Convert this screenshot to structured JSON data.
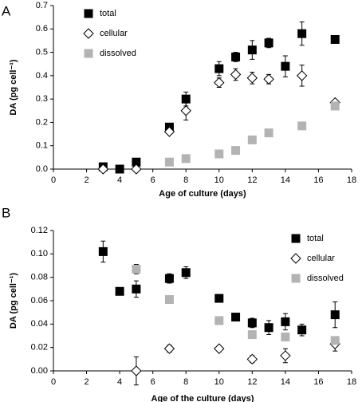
{
  "chart_data": [
    {
      "type": "scatter",
      "panel_label": "A",
      "xlabel": "Age of culture (days)",
      "ylabel": "DA (pg cell⁻¹)",
      "xlim": [
        0,
        18
      ],
      "xticks": [
        0,
        2,
        4,
        6,
        8,
        10,
        12,
        14,
        16,
        18
      ],
      "ylim": [
        0,
        0.7
      ],
      "yticks": [
        {
          "value": 0,
          "label": "0.0"
        },
        0.1,
        0.2,
        0.3,
        0.4,
        0.5,
        0.6,
        0.7
      ],
      "legend": "upper left",
      "grid": false,
      "series": [
        {
          "name": "total",
          "marker": "square",
          "color": "#000000",
          "x": [
            3,
            4,
            5,
            7,
            8,
            10,
            11,
            12,
            13,
            14,
            15,
            17
          ],
          "values": [
            0.01,
            0.0,
            0.03,
            0.18,
            0.3,
            0.43,
            0.48,
            0.51,
            0.54,
            0.44,
            0.58,
            0.555
          ],
          "errors": [
            null,
            null,
            null,
            0.01,
            0.03,
            0.03,
            0.02,
            0.04,
            0.02,
            0.045,
            0.05,
            null
          ]
        },
        {
          "name": "cellular",
          "marker": "diamond",
          "color": "#000000",
          "x": [
            3,
            5,
            7,
            8,
            10,
            11,
            12,
            13,
            15,
            17
          ],
          "values": [
            0.0,
            0.0,
            0.16,
            0.25,
            0.37,
            0.405,
            0.39,
            0.385,
            0.4,
            0.285
          ],
          "errors": [
            null,
            null,
            0.01,
            0.04,
            0.02,
            0.025,
            0.025,
            0.02,
            0.045,
            null
          ]
        },
        {
          "name": "dissolved",
          "marker": "square",
          "color": "#b3b3b3",
          "x": [
            7,
            8,
            10,
            11,
            12,
            13,
            15,
            17
          ],
          "values": [
            0.03,
            0.045,
            0.065,
            0.08,
            0.125,
            0.155,
            0.185,
            0.27
          ],
          "errors": [
            null,
            null,
            null,
            null,
            null,
            null,
            null,
            null
          ]
        }
      ]
    },
    {
      "type": "scatter",
      "panel_label": "B",
      "xlabel": "Age of the culture (days)",
      "ylabel": "DA (pg cell⁻¹)",
      "xlim": [
        0,
        18
      ],
      "xticks": [
        0,
        2,
        4,
        6,
        8,
        10,
        12,
        14,
        16,
        18
      ],
      "ylim": [
        0,
        0.12
      ],
      "yticks": [
        {
          "value": 0,
          "label": "0.00"
        },
        {
          "value": 0.02,
          "label": "0.02"
        },
        {
          "value": 0.04,
          "label": "0.04"
        },
        {
          "value": 0.06,
          "label": "0.06"
        },
        {
          "value": 0.08,
          "label": "0.08"
        },
        {
          "value": 0.1,
          "label": "0.10"
        },
        {
          "value": 0.12,
          "label": "0.12"
        }
      ],
      "legend": "upper right",
      "grid": false,
      "series": [
        {
          "name": "total",
          "marker": "square",
          "color": "#000000",
          "x": [
            3,
            4,
            5,
            7,
            8,
            10,
            11,
            12,
            13,
            14,
            15,
            17
          ],
          "values": [
            0.102,
            0.068,
            0.07,
            0.079,
            0.084,
            0.062,
            0.046,
            0.041,
            0.037,
            0.042,
            0.035,
            0.048
          ],
          "errors": [
            0.009,
            null,
            0.007,
            0.004,
            0.005,
            null,
            0.003,
            0.004,
            0.006,
            0.007,
            0.005,
            0.011
          ]
        },
        {
          "name": "cellular",
          "marker": "diamond",
          "color": "#000000",
          "x": [
            5,
            7,
            10,
            12,
            14,
            17
          ],
          "values": [
            0.0,
            0.019,
            0.019,
            0.01,
            0.013,
            0.023
          ],
          "errors": [
            0.012,
            0.003,
            null,
            0.003,
            0.006,
            0.006
          ]
        },
        {
          "name": "dissolved",
          "marker": "square",
          "color": "#b3b3b3",
          "x": [
            5,
            7,
            10,
            12,
            14,
            17
          ],
          "values": [
            0.087,
            0.061,
            0.043,
            0.031,
            0.029,
            0.026
          ],
          "errors": [
            0.004,
            null,
            null,
            null,
            null,
            null
          ]
        }
      ]
    }
  ]
}
